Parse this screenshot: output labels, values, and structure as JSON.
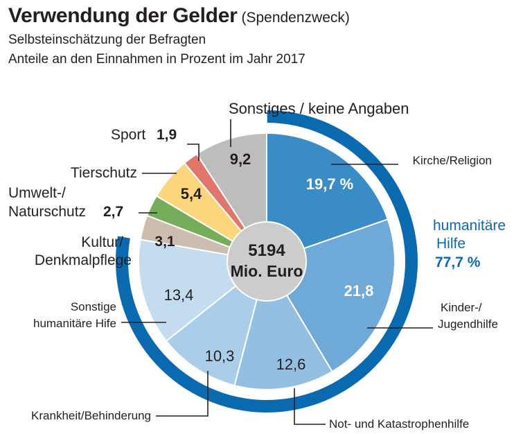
{
  "header": {
    "title": "Verwendung der Gelder",
    "title_paren": "(Spendenzweck)",
    "subtitle1": "Selbsteinschätzung der Befragten",
    "subtitle2": "Anteile an den Einnahmen in Prozent im Jahr 2017"
  },
  "chart_data": {
    "type": "pie",
    "title": "Verwendung der Gelder (Spendenzweck)",
    "center_value": "5194",
    "center_unit": "Mio. Euro",
    "slices": [
      {
        "key": "kirche",
        "label": "Kirche/Religion",
        "value": 19.7,
        "value_label": "19,7 %",
        "color": "#3a8cc6"
      },
      {
        "key": "kinder",
        "label": "Kinder-/ Jugendhilfe",
        "value": 21.8,
        "value_label": "21,8",
        "color": "#6ea9d8"
      },
      {
        "key": "not",
        "label": "Not- und Katastrophenhilfe",
        "value": 12.6,
        "value_label": "12,6",
        "color": "#93bfe3"
      },
      {
        "key": "krankheit",
        "label": "Krankheit/Behinderung",
        "value": 10.3,
        "value_label": "10,3",
        "color": "#aacde9"
      },
      {
        "key": "sonsthum",
        "label": "Sonstige humanitäre Hife",
        "value": 13.4,
        "value_label": "13,4",
        "color": "#c3dcf0"
      },
      {
        "key": "kultur",
        "label": "Kultur/ Denkmalpflege",
        "value": 3.1,
        "value_label": "3,1",
        "color": "#cdbcb0"
      },
      {
        "key": "umwelt",
        "label": "Umwelt-/ Naturschutz",
        "value": 2.7,
        "value_label": "2,7",
        "color": "#76ad5a"
      },
      {
        "key": "tierschutz",
        "label": "Tierschutz",
        "value": 5.4,
        "value_label": "5,4",
        "color": "#fbd67c"
      },
      {
        "key": "sport",
        "label": "Sport",
        "value": 1.9,
        "value_label": "1,9",
        "color": "#e0766c"
      },
      {
        "key": "sonstiges",
        "label": "Sonstiges / keine Angaben",
        "value": 9.2,
        "value_label": "9,2",
        "color": "#bebdbc"
      }
    ],
    "group": {
      "label_line1": "humanitäre",
      "label_line2": "Hilfe",
      "value_label": "77,7 %",
      "value": 77.7,
      "color": "#0a6ab0"
    }
  }
}
